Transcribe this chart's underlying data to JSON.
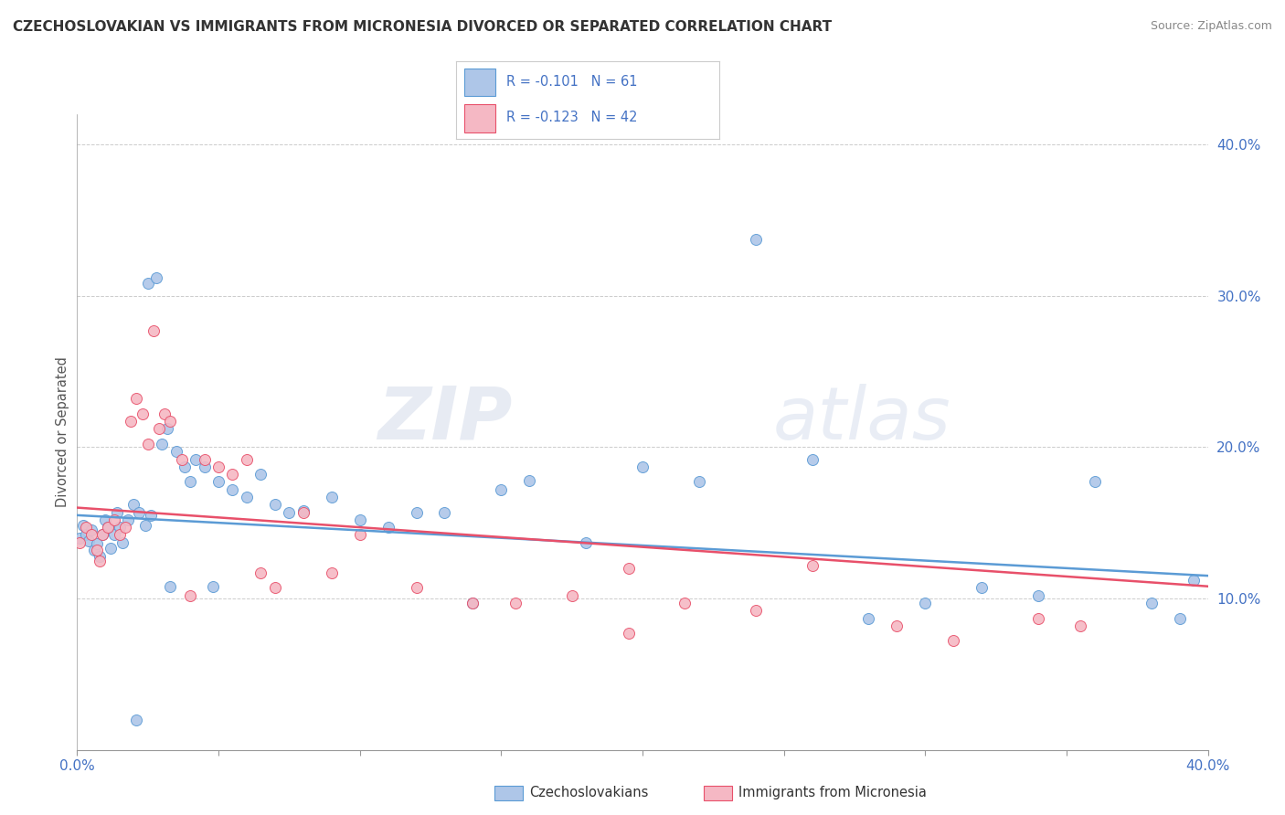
{
  "title": "CZECHOSLOVAKIAN VS IMMIGRANTS FROM MICRONESIA DIVORCED OR SEPARATED CORRELATION CHART",
  "source": "Source: ZipAtlas.com",
  "ylabel": "Divorced or Separated",
  "legend_label1": "Czechoslovakians",
  "legend_label2": "Immigrants from Micronesia",
  "legend_r1": "R = -0.101",
  "legend_n1": "N = 61",
  "legend_r2": "R = -0.123",
  "legend_n2": "N = 42",
  "xlim": [
    0.0,
    0.4
  ],
  "ylim": [
    0.0,
    0.42
  ],
  "color_blue": "#aec6e8",
  "color_pink": "#f5b8c4",
  "color_blue_line": "#5b9bd5",
  "color_pink_line": "#e8506a",
  "watermark_zip": "ZIP",
  "watermark_atlas": "atlas",
  "blue_scatter_x": [
    0.001,
    0.002,
    0.003,
    0.004,
    0.005,
    0.006,
    0.007,
    0.008,
    0.009,
    0.01,
    0.011,
    0.012,
    0.013,
    0.014,
    0.015,
    0.016,
    0.018,
    0.02,
    0.022,
    0.024,
    0.025,
    0.026,
    0.028,
    0.03,
    0.032,
    0.035,
    0.038,
    0.04,
    0.042,
    0.045,
    0.05,
    0.055,
    0.06,
    0.065,
    0.07,
    0.075,
    0.08,
    0.09,
    0.1,
    0.11,
    0.12,
    0.13,
    0.14,
    0.15,
    0.16,
    0.18,
    0.2,
    0.22,
    0.24,
    0.26,
    0.28,
    0.3,
    0.32,
    0.34,
    0.36,
    0.38,
    0.39,
    0.395,
    0.021,
    0.033,
    0.048
  ],
  "blue_scatter_y": [
    0.14,
    0.148,
    0.142,
    0.138,
    0.145,
    0.132,
    0.136,
    0.128,
    0.142,
    0.152,
    0.147,
    0.133,
    0.142,
    0.157,
    0.147,
    0.137,
    0.152,
    0.162,
    0.157,
    0.148,
    0.308,
    0.155,
    0.312,
    0.202,
    0.212,
    0.197,
    0.187,
    0.177,
    0.192,
    0.187,
    0.177,
    0.172,
    0.167,
    0.182,
    0.162,
    0.157,
    0.158,
    0.167,
    0.152,
    0.147,
    0.157,
    0.157,
    0.097,
    0.172,
    0.178,
    0.137,
    0.187,
    0.177,
    0.337,
    0.192,
    0.087,
    0.097,
    0.107,
    0.102,
    0.177,
    0.097,
    0.087,
    0.112,
    0.02,
    0.108,
    0.108
  ],
  "pink_scatter_x": [
    0.001,
    0.003,
    0.005,
    0.007,
    0.009,
    0.011,
    0.013,
    0.015,
    0.017,
    0.019,
    0.021,
    0.023,
    0.025,
    0.027,
    0.029,
    0.031,
    0.033,
    0.037,
    0.04,
    0.045,
    0.05,
    0.055,
    0.06,
    0.065,
    0.07,
    0.08,
    0.09,
    0.1,
    0.12,
    0.14,
    0.155,
    0.175,
    0.195,
    0.215,
    0.24,
    0.26,
    0.29,
    0.31,
    0.34,
    0.355,
    0.195,
    0.008
  ],
  "pink_scatter_y": [
    0.137,
    0.147,
    0.142,
    0.132,
    0.142,
    0.147,
    0.152,
    0.142,
    0.147,
    0.217,
    0.232,
    0.222,
    0.202,
    0.277,
    0.212,
    0.222,
    0.217,
    0.192,
    0.102,
    0.192,
    0.187,
    0.182,
    0.192,
    0.117,
    0.107,
    0.157,
    0.117,
    0.142,
    0.107,
    0.097,
    0.097,
    0.102,
    0.077,
    0.097,
    0.092,
    0.122,
    0.082,
    0.072,
    0.087,
    0.082,
    0.12,
    0.125
  ]
}
